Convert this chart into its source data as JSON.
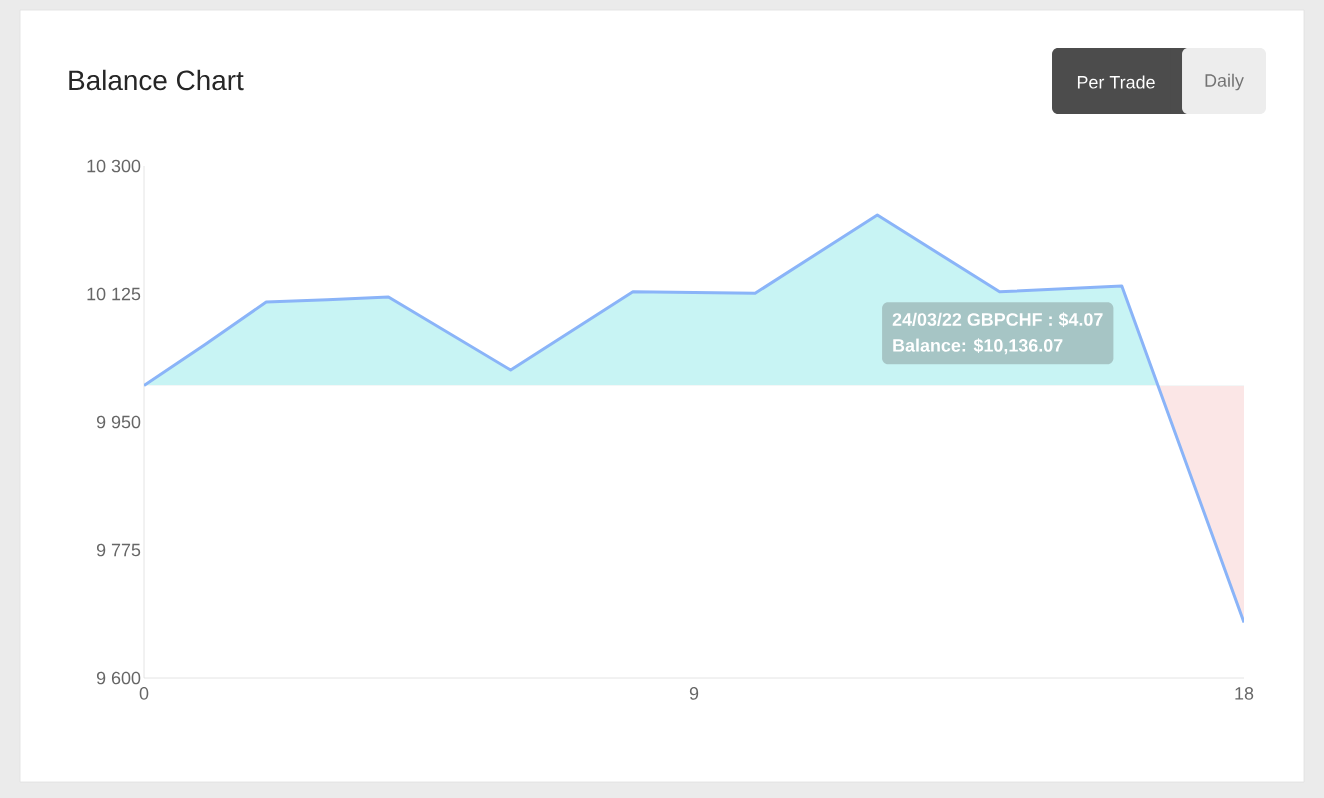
{
  "chart_data": {
    "type": "area",
    "title": "Balance Chart",
    "x": [
      0,
      1,
      2,
      3,
      4,
      6,
      8,
      10,
      12,
      14,
      16,
      18
    ],
    "series": [
      {
        "color": "#8ab4f8",
        "values": [
          10000,
          10056,
          10114,
          10117,
          10121,
          10021,
          10128,
          10126,
          10233,
          10128,
          10136,
          9676
        ]
      }
    ],
    "xlim": [
      0,
      18
    ],
    "xticks": [
      0,
      9,
      18
    ],
    "ylim": [
      9600,
      10300
    ],
    "yticks": [
      {
        "value": 9600,
        "label": "9 600"
      },
      {
        "value": 9775,
        "label": "9 775"
      },
      {
        "value": 9950,
        "label": "9 950"
      },
      {
        "value": 10125,
        "label": "10 125"
      },
      {
        "value": 10300,
        "label": "10 300"
      }
    ],
    "grid": false,
    "marker": "none",
    "line_style": "solid",
    "annotations": [
      {
        "text": "24/03/22 GBPCHF : $4.07",
        "x": 16,
        "y": 10136
      },
      "Balance: $10,136.07",
      "Per Trade",
      "Daily"
    ]
  }
}
